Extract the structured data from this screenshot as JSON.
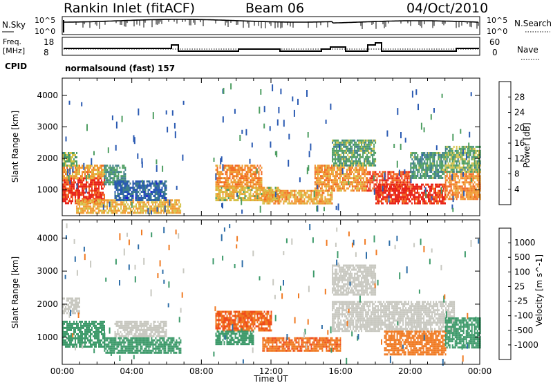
{
  "header": {
    "station": "Rankin Inlet (fitACF)",
    "beam": "Beam 06",
    "date": "04/Oct/2010"
  },
  "top_panels": {
    "nsky_label": "N.Sky",
    "nsearch_label": "N.Search",
    "nsky_ticks": [
      "10^5",
      "10^0"
    ],
    "nsearch_ticks": [
      "10^5",
      "10^0"
    ],
    "freq_label": "Freq.",
    "freq_unit": "[MHz]",
    "freq_ticks": [
      "18",
      "8"
    ],
    "nave_label": "Nave",
    "nave_ticks": [
      "60",
      "0"
    ],
    "cpid_label": "CPID",
    "cpid_value": "normalsound (fast) 157"
  },
  "chart_data": [
    {
      "type": "heatmap",
      "title": "",
      "ylabel": "Slant Range [km]",
      "xlabel": "",
      "x_ticks": [
        "00:00",
        "04:00",
        "08:00",
        "12:00",
        "16:00",
        "20:00",
        "00:00"
      ],
      "xlim_hours": [
        0,
        24
      ],
      "y_ticks": [
        1000,
        2000,
        3000,
        4000
      ],
      "ylim": [
        180,
        4550
      ],
      "colorbar": {
        "label": "Power [dB]",
        "ticks": [
          "4",
          "8",
          "12",
          "16",
          "20",
          "24",
          "28"
        ],
        "range": [
          0,
          30
        ],
        "colors": [
          "#1f1fd6",
          "#2a5ab2",
          "#3f7f8a",
          "#4e9e62",
          "#d4c24a",
          "#f09a30",
          "#f26a22",
          "#e8241a"
        ]
      },
      "bands": [
        {
          "t0": 0.0,
          "t1": 2.4,
          "r0": 600,
          "r1": 1400,
          "value": 27
        },
        {
          "t0": 0.0,
          "t1": 2.4,
          "r0": 1400,
          "r1": 1800,
          "value": 20
        },
        {
          "t0": 0.0,
          "t1": 0.8,
          "r0": 1800,
          "r1": 2200,
          "value": 14
        },
        {
          "t0": 2.4,
          "t1": 3.6,
          "r0": 1200,
          "r1": 1800,
          "value": 11
        },
        {
          "t0": 0.8,
          "t1": 6.8,
          "r0": 300,
          "r1": 700,
          "value": 19
        },
        {
          "t0": 3.0,
          "t1": 6.0,
          "r0": 700,
          "r1": 1300,
          "value": 7
        },
        {
          "t0": 8.8,
          "t1": 11.5,
          "r0": 1100,
          "r1": 1800,
          "value": 22
        },
        {
          "t0": 8.8,
          "t1": 12.5,
          "r0": 700,
          "r1": 1100,
          "value": 18
        },
        {
          "t0": 11.5,
          "t1": 15.5,
          "r0": 600,
          "r1": 1000,
          "value": 20
        },
        {
          "t0": 14.5,
          "t1": 17.5,
          "r0": 1000,
          "r1": 1800,
          "value": 21
        },
        {
          "t0": 15.5,
          "t1": 18.0,
          "r0": 1800,
          "r1": 2600,
          "value": 13
        },
        {
          "t0": 17.5,
          "t1": 20.0,
          "r0": 1000,
          "r1": 1600,
          "value": 26
        },
        {
          "t0": 18.0,
          "t1": 22.0,
          "r0": 600,
          "r1": 1200,
          "value": 28
        },
        {
          "t0": 20.0,
          "t1": 22.0,
          "r0": 1400,
          "r1": 2200,
          "value": 12
        },
        {
          "t0": 22.0,
          "t1": 24.0,
          "r0": 700,
          "r1": 1600,
          "value": 22
        },
        {
          "t0": 22.0,
          "t1": 24.0,
          "r0": 1600,
          "r1": 2400,
          "value": 14
        }
      ]
    },
    {
      "type": "heatmap",
      "title": "",
      "ylabel": "Slant Range [km]",
      "xlabel": "Time UT",
      "x_ticks": [
        "00:00",
        "04:00",
        "08:00",
        "12:00",
        "16:00",
        "20:00",
        "00:00"
      ],
      "xlim_hours": [
        0,
        24
      ],
      "y_ticks": [
        1000,
        2000,
        3000,
        4000
      ],
      "ylim": [
        180,
        4550
      ],
      "colorbar": {
        "label": "Velocity [m s^-1]",
        "ticks": [
          "1000",
          "500",
          "100",
          "25",
          "-25",
          "-100",
          "-500",
          "-1000"
        ],
        "colors": [
          "#2020c8",
          "#2e6ea8",
          "#3d9a6a",
          "#78c23a",
          "#c8c8c0",
          "#f2b030",
          "#f07a22",
          "#ef4c1c",
          "#e01818"
        ]
      },
      "bands": [
        {
          "t0": 0.0,
          "t1": 2.4,
          "r0": 700,
          "r1": 1500,
          "value": 100
        },
        {
          "t0": 0.0,
          "t1": 1.0,
          "r0": 1700,
          "r1": 2200,
          "value": 0
        },
        {
          "t0": 2.4,
          "t1": 6.8,
          "r0": 500,
          "r1": 1000,
          "value": 150
        },
        {
          "t0": 3.0,
          "t1": 6.0,
          "r0": 1000,
          "r1": 1500,
          "value": 0
        },
        {
          "t0": 8.8,
          "t1": 12.0,
          "r0": 1200,
          "r1": 1800,
          "value": -300
        },
        {
          "t0": 8.8,
          "t1": 11.0,
          "r0": 800,
          "r1": 1200,
          "value": 120
        },
        {
          "t0": 11.5,
          "t1": 16.0,
          "r0": 600,
          "r1": 1000,
          "value": -250
        },
        {
          "t0": 15.5,
          "t1": 22.5,
          "r0": 1200,
          "r1": 2100,
          "value": 0
        },
        {
          "t0": 15.5,
          "t1": 18.0,
          "r0": 2300,
          "r1": 3200,
          "value": 0
        },
        {
          "t0": 18.5,
          "t1": 22.0,
          "r0": 500,
          "r1": 1200,
          "value": -200
        },
        {
          "t0": 22.0,
          "t1": 24.0,
          "r0": 700,
          "r1": 1600,
          "value": 140
        }
      ]
    }
  ]
}
